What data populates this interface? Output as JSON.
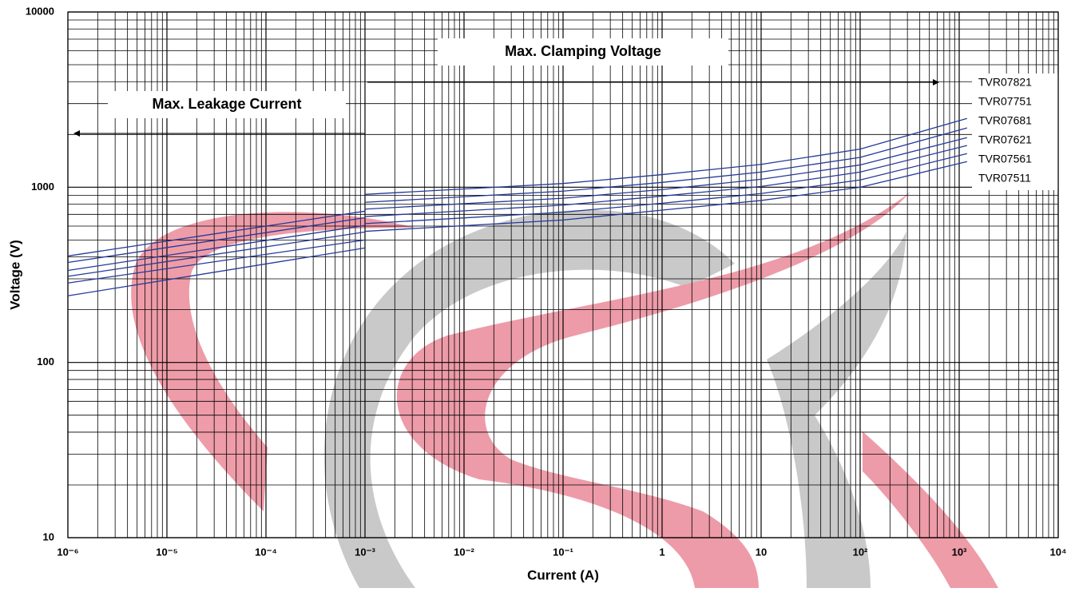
{
  "chart_data": {
    "type": "line",
    "x_label": "Current (A)",
    "y_label": "Voltage (V)",
    "annotations": [
      "Max. Clamping Voltage",
      "Max. Leakage Current"
    ],
    "log_x": true,
    "log_y": true,
    "grid": true,
    "minor_grid": true,
    "xlim": [
      1e-06,
      10000
    ],
    "ylim": [
      10,
      10000
    ],
    "xticks": [
      {
        "value": 1e-06,
        "label": "10⁻⁶"
      },
      {
        "value": 1e-05,
        "label": "10⁻⁵"
      },
      {
        "value": 0.0001,
        "label": "10⁻⁴"
      },
      {
        "value": 0.001,
        "label": "10⁻³"
      },
      {
        "value": 0.01,
        "label": "10⁻²"
      },
      {
        "value": 0.1,
        "label": "10⁻¹"
      },
      1,
      10,
      {
        "value": 100,
        "label": "10²"
      },
      {
        "value": 1000,
        "label": "10³"
      },
      {
        "value": 10000,
        "label": "10⁴"
      }
    ],
    "yticks": [
      10,
      100,
      1000,
      10000
    ],
    "x": [
      1e-06,
      0.001,
      0.001,
      0.001,
      0.1,
      1,
      10,
      100,
      1200
    ],
    "series": [
      {
        "name": "TVR07821",
        "color": "#24399a",
        "values": [
          405,
          730,
          null,
          910,
          1050,
          1180,
          1350,
          1650,
          2470
        ]
      },
      {
        "name": "TVR07751",
        "color": "#24399a",
        "values": [
          372,
          670,
          null,
          820,
          950,
          1065,
          1220,
          1480,
          2180
        ]
      },
      {
        "name": "TVR07681",
        "color": "#24399a",
        "values": [
          335,
          605,
          null,
          750,
          865,
          970,
          1110,
          1340,
          1920
        ]
      },
      {
        "name": "TVR07621",
        "color": "#24399a",
        "values": [
          310,
          555,
          null,
          680,
          790,
          890,
          1010,
          1220,
          1730
        ]
      },
      {
        "name": "TVR07561",
        "color": "#24399a",
        "values": [
          284,
          500,
          null,
          620,
          720,
          810,
          920,
          1100,
          1555
        ]
      },
      {
        "name": "TVR07511",
        "color": "#24399a",
        "values": [
          240,
          450,
          null,
          560,
          650,
          740,
          840,
          1000,
          1400
        ]
      }
    ]
  }
}
